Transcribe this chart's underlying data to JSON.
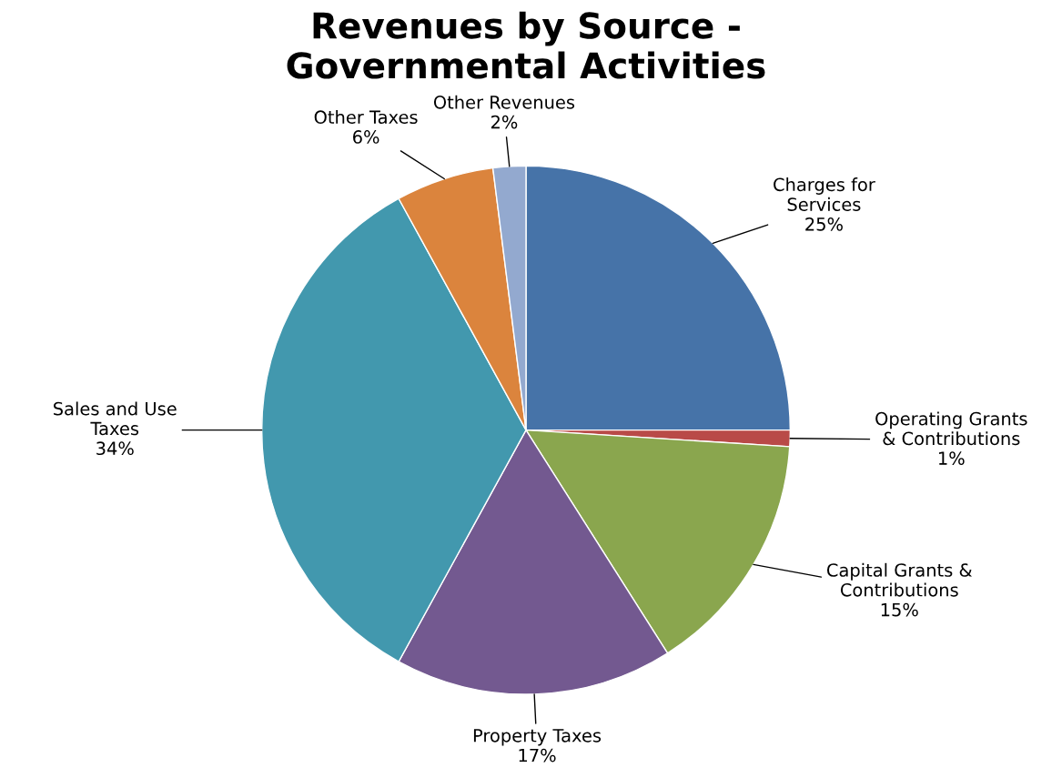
{
  "chart_data": {
    "type": "pie",
    "title": "Revenues by Source -\nGovernmental Activities",
    "categories": [
      "Charges for\nServices",
      "Operating Grants\n& Contributions",
      "Capital Grants &\nContributions",
      "Property Taxes",
      "Sales and Use\nTaxes",
      "Other Taxes",
      "Other Revenues"
    ],
    "values": [
      25,
      1,
      15,
      17,
      34,
      6,
      2
    ],
    "colors": [
      "#4673a8",
      "#b94a48",
      "#8aa64e",
      "#735990",
      "#4298ae",
      "#db843d",
      "#93a9cf"
    ],
    "value_labels": [
      "25%",
      "1%",
      "15%",
      "17%",
      "34%",
      "6%",
      "2%"
    ],
    "legend": false
  }
}
